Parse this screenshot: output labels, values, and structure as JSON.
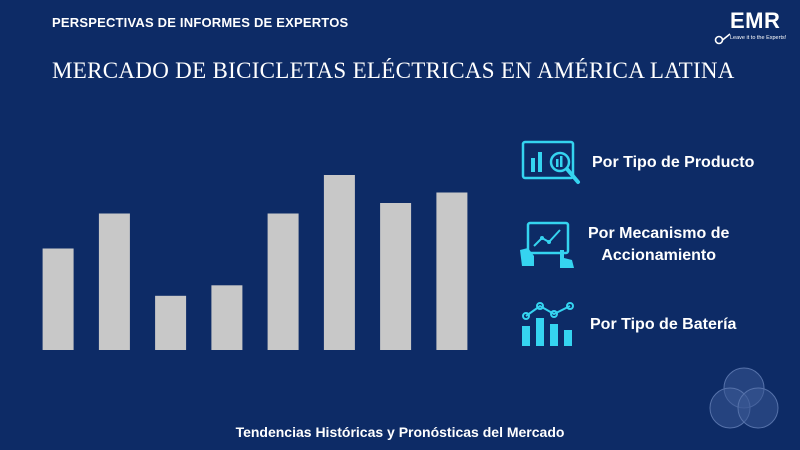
{
  "header": {
    "eyebrow": "PERSPECTIVAS DE INFORMES DE EXPERTOS",
    "title": "MERCADO DE BICICLETAS ELÉCTRICAS EN AMÉRICA LATINA"
  },
  "logo": {
    "text": "EMR",
    "tagline": "Leave it to the Experts!"
  },
  "segments": [
    {
      "label_line1": "Por Tipo de Producto",
      "label_line2": "",
      "icon": "analytics-magnifier-icon"
    },
    {
      "label_line1": "Por Mecanismo de",
      "label_line2": "Accionamiento",
      "icon": "touch-tablet-chart-icon"
    },
    {
      "label_line1": "Por Tipo de Batería",
      "label_line2": "",
      "icon": "bar-line-chart-icon"
    }
  ],
  "footer": {
    "text": "Tendencias Históricas y Pronósticas del Mercado"
  },
  "colors": {
    "background": "#0d2b66",
    "bar": "#c8c8c8",
    "icon_accent": "#35d4f0"
  },
  "chart_data": {
    "type": "bar",
    "categories": [
      "",
      "",
      "",
      "",
      "",
      "",
      "",
      ""
    ],
    "values": [
      58,
      78,
      31,
      37,
      78,
      100,
      84,
      90
    ],
    "title": "",
    "xlabel": "",
    "ylabel": "",
    "ylim": [
      0,
      100
    ],
    "grid": false,
    "legend": "none"
  }
}
